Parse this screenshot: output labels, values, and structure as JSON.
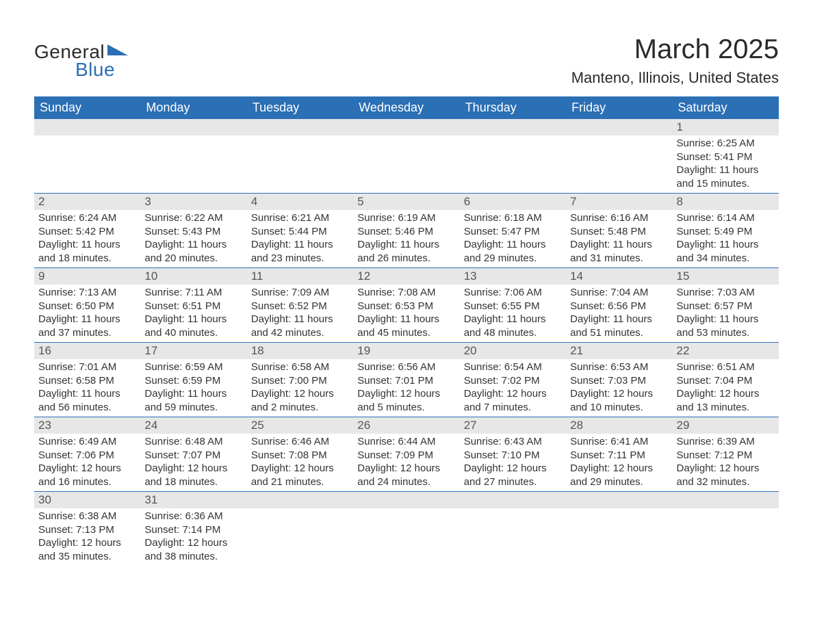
{
  "logo": {
    "text1": "General",
    "text2": "Blue",
    "shape_color": "#2b6fb5"
  },
  "title": "March 2025",
  "subtitle": "Manteno, Illinois, United States",
  "colors": {
    "header_bg": "#2b6fb5",
    "header_text": "#ffffff",
    "daynum_bg": "#e7e7e7",
    "body_text": "#333333",
    "page_bg": "#ffffff",
    "row_divider": "#2b6fb5"
  },
  "fonts": {
    "title_size": 40,
    "subtitle_size": 22,
    "weekday_size": 18,
    "daynum_size": 17,
    "body_size": 15
  },
  "weekdays": [
    "Sunday",
    "Monday",
    "Tuesday",
    "Wednesday",
    "Thursday",
    "Friday",
    "Saturday"
  ],
  "weeks": [
    [
      null,
      null,
      null,
      null,
      null,
      null,
      {
        "n": "1",
        "sunrise": "Sunrise: 6:25 AM",
        "sunset": "Sunset: 5:41 PM",
        "daylight": "Daylight: 11 hours and 15 minutes."
      }
    ],
    [
      {
        "n": "2",
        "sunrise": "Sunrise: 6:24 AM",
        "sunset": "Sunset: 5:42 PM",
        "daylight": "Daylight: 11 hours and 18 minutes."
      },
      {
        "n": "3",
        "sunrise": "Sunrise: 6:22 AM",
        "sunset": "Sunset: 5:43 PM",
        "daylight": "Daylight: 11 hours and 20 minutes."
      },
      {
        "n": "4",
        "sunrise": "Sunrise: 6:21 AM",
        "sunset": "Sunset: 5:44 PM",
        "daylight": "Daylight: 11 hours and 23 minutes."
      },
      {
        "n": "5",
        "sunrise": "Sunrise: 6:19 AM",
        "sunset": "Sunset: 5:46 PM",
        "daylight": "Daylight: 11 hours and 26 minutes."
      },
      {
        "n": "6",
        "sunrise": "Sunrise: 6:18 AM",
        "sunset": "Sunset: 5:47 PM",
        "daylight": "Daylight: 11 hours and 29 minutes."
      },
      {
        "n": "7",
        "sunrise": "Sunrise: 6:16 AM",
        "sunset": "Sunset: 5:48 PM",
        "daylight": "Daylight: 11 hours and 31 minutes."
      },
      {
        "n": "8",
        "sunrise": "Sunrise: 6:14 AM",
        "sunset": "Sunset: 5:49 PM",
        "daylight": "Daylight: 11 hours and 34 minutes."
      }
    ],
    [
      {
        "n": "9",
        "sunrise": "Sunrise: 7:13 AM",
        "sunset": "Sunset: 6:50 PM",
        "daylight": "Daylight: 11 hours and 37 minutes."
      },
      {
        "n": "10",
        "sunrise": "Sunrise: 7:11 AM",
        "sunset": "Sunset: 6:51 PM",
        "daylight": "Daylight: 11 hours and 40 minutes."
      },
      {
        "n": "11",
        "sunrise": "Sunrise: 7:09 AM",
        "sunset": "Sunset: 6:52 PM",
        "daylight": "Daylight: 11 hours and 42 minutes."
      },
      {
        "n": "12",
        "sunrise": "Sunrise: 7:08 AM",
        "sunset": "Sunset: 6:53 PM",
        "daylight": "Daylight: 11 hours and 45 minutes."
      },
      {
        "n": "13",
        "sunrise": "Sunrise: 7:06 AM",
        "sunset": "Sunset: 6:55 PM",
        "daylight": "Daylight: 11 hours and 48 minutes."
      },
      {
        "n": "14",
        "sunrise": "Sunrise: 7:04 AM",
        "sunset": "Sunset: 6:56 PM",
        "daylight": "Daylight: 11 hours and 51 minutes."
      },
      {
        "n": "15",
        "sunrise": "Sunrise: 7:03 AM",
        "sunset": "Sunset: 6:57 PM",
        "daylight": "Daylight: 11 hours and 53 minutes."
      }
    ],
    [
      {
        "n": "16",
        "sunrise": "Sunrise: 7:01 AM",
        "sunset": "Sunset: 6:58 PM",
        "daylight": "Daylight: 11 hours and 56 minutes."
      },
      {
        "n": "17",
        "sunrise": "Sunrise: 6:59 AM",
        "sunset": "Sunset: 6:59 PM",
        "daylight": "Daylight: 11 hours and 59 minutes."
      },
      {
        "n": "18",
        "sunrise": "Sunrise: 6:58 AM",
        "sunset": "Sunset: 7:00 PM",
        "daylight": "Daylight: 12 hours and 2 minutes."
      },
      {
        "n": "19",
        "sunrise": "Sunrise: 6:56 AM",
        "sunset": "Sunset: 7:01 PM",
        "daylight": "Daylight: 12 hours and 5 minutes."
      },
      {
        "n": "20",
        "sunrise": "Sunrise: 6:54 AM",
        "sunset": "Sunset: 7:02 PM",
        "daylight": "Daylight: 12 hours and 7 minutes."
      },
      {
        "n": "21",
        "sunrise": "Sunrise: 6:53 AM",
        "sunset": "Sunset: 7:03 PM",
        "daylight": "Daylight: 12 hours and 10 minutes."
      },
      {
        "n": "22",
        "sunrise": "Sunrise: 6:51 AM",
        "sunset": "Sunset: 7:04 PM",
        "daylight": "Daylight: 12 hours and 13 minutes."
      }
    ],
    [
      {
        "n": "23",
        "sunrise": "Sunrise: 6:49 AM",
        "sunset": "Sunset: 7:06 PM",
        "daylight": "Daylight: 12 hours and 16 minutes."
      },
      {
        "n": "24",
        "sunrise": "Sunrise: 6:48 AM",
        "sunset": "Sunset: 7:07 PM",
        "daylight": "Daylight: 12 hours and 18 minutes."
      },
      {
        "n": "25",
        "sunrise": "Sunrise: 6:46 AM",
        "sunset": "Sunset: 7:08 PM",
        "daylight": "Daylight: 12 hours and 21 minutes."
      },
      {
        "n": "26",
        "sunrise": "Sunrise: 6:44 AM",
        "sunset": "Sunset: 7:09 PM",
        "daylight": "Daylight: 12 hours and 24 minutes."
      },
      {
        "n": "27",
        "sunrise": "Sunrise: 6:43 AM",
        "sunset": "Sunset: 7:10 PM",
        "daylight": "Daylight: 12 hours and 27 minutes."
      },
      {
        "n": "28",
        "sunrise": "Sunrise: 6:41 AM",
        "sunset": "Sunset: 7:11 PM",
        "daylight": "Daylight: 12 hours and 29 minutes."
      },
      {
        "n": "29",
        "sunrise": "Sunrise: 6:39 AM",
        "sunset": "Sunset: 7:12 PM",
        "daylight": "Daylight: 12 hours and 32 minutes."
      }
    ],
    [
      {
        "n": "30",
        "sunrise": "Sunrise: 6:38 AM",
        "sunset": "Sunset: 7:13 PM",
        "daylight": "Daylight: 12 hours and 35 minutes."
      },
      {
        "n": "31",
        "sunrise": "Sunrise: 6:36 AM",
        "sunset": "Sunset: 7:14 PM",
        "daylight": "Daylight: 12 hours and 38 minutes."
      },
      null,
      null,
      null,
      null,
      null
    ]
  ]
}
